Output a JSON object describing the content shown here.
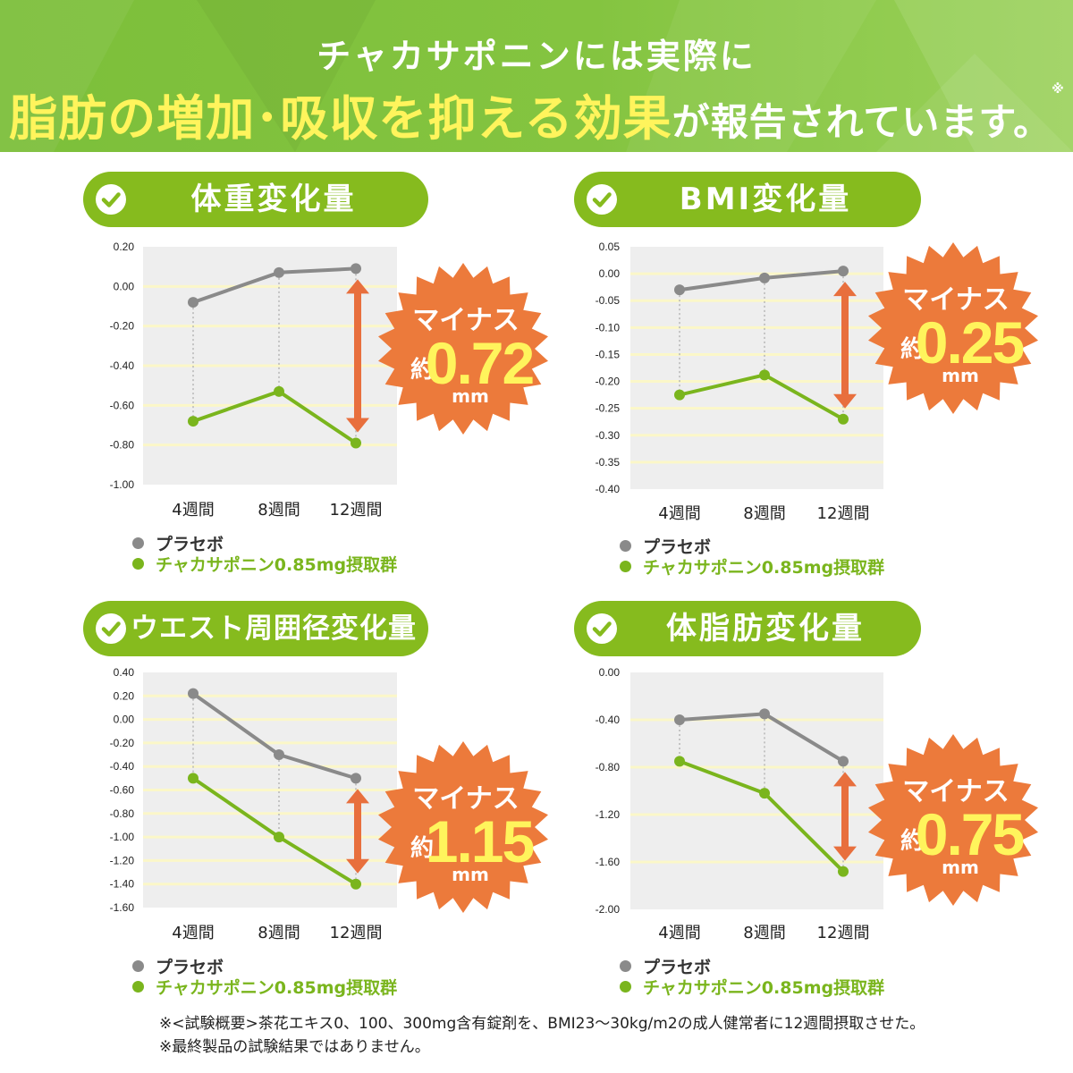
{
  "header": {
    "line1": "チャカサポニンには実際に",
    "line2_highlight": "脂肪の増加･吸収を抑える効果",
    "line2_rest": "が報告されています。",
    "line2_mark": "※"
  },
  "colors": {
    "brand_green": "#86bb1e",
    "series_green": "#7ab51d",
    "series_gray": "#8a8a8a",
    "badge_orange": "#ec7a3b",
    "arrow_orange": "#e86f3d",
    "highlight_yellow": "#fff45c"
  },
  "icons": {
    "check": "check-circle-icon"
  },
  "legend": {
    "placebo": "プラセボ",
    "treatment": "チャカサポニン0.85mg摂取群"
  },
  "panels": [
    {
      "title": "体重変化量",
      "badge": {
        "label": "マイナス",
        "prefix": "約",
        "value": "0.72",
        "unit": "mm"
      },
      "chart_data": {
        "type": "line",
        "title": "体重変化量",
        "categories": [
          "4週間",
          "8週間",
          "12週間"
        ],
        "y_ticks": [
          "0.20",
          "0.00",
          "-0.20",
          "-0.40",
          "-0.60",
          "-0.80",
          "-1.00"
        ],
        "ylim": [
          -1.0,
          0.2
        ],
        "grid": true,
        "legend_position": "bottom-left",
        "series": [
          {
            "name": "プラセボ",
            "values": [
              -0.08,
              0.07,
              0.09
            ]
          },
          {
            "name": "チャカサポニン0.85mg摂取群",
            "values": [
              -0.68,
              -0.53,
              -0.79
            ]
          }
        ]
      }
    },
    {
      "title": "BMI変化量",
      "badge": {
        "label": "マイナス",
        "prefix": "約",
        "value": "0.25",
        "unit": "mm"
      },
      "chart_data": {
        "type": "line",
        "title": "BMI変化量",
        "categories": [
          "4週間",
          "8週間",
          "12週間"
        ],
        "y_ticks": [
          "0.05",
          "0.00",
          "-0.05",
          "-0.10",
          "-0.15",
          "-0.20",
          "-0.25",
          "-0.30",
          "-0.35",
          "-0.40"
        ],
        "ylim": [
          -0.4,
          0.05
        ],
        "grid": true,
        "legend_position": "bottom-left",
        "series": [
          {
            "name": "プラセボ",
            "values": [
              -0.03,
              -0.008,
              0.005
            ]
          },
          {
            "name": "チャカサポニン0.85mg摂取群",
            "values": [
              -0.225,
              -0.188,
              -0.27
            ]
          }
        ]
      }
    },
    {
      "title": "ウエスト周囲径変化量",
      "badge": {
        "label": "マイナス",
        "prefix": "約",
        "value": "1.15",
        "unit": "mm"
      },
      "chart_data": {
        "type": "line",
        "title": "ウエスト周囲径変化量",
        "categories": [
          "4週間",
          "8週間",
          "12週間"
        ],
        "y_ticks": [
          "0.40",
          "0.20",
          "0.00",
          "-0.20",
          "-0.40",
          "-0.60",
          "-0.80",
          "-1.00",
          "-1.20",
          "-1.40",
          "-1.60"
        ],
        "ylim": [
          -1.6,
          0.4
        ],
        "grid": true,
        "legend_position": "bottom-left",
        "series": [
          {
            "name": "プラセボ",
            "values": [
              0.22,
              -0.3,
              -0.5
            ]
          },
          {
            "name": "チャカサポニン0.85mg摂取群",
            "values": [
              -0.5,
              -1.0,
              -1.4
            ]
          }
        ]
      }
    },
    {
      "title": "体脂肪変化量",
      "badge": {
        "label": "マイナス",
        "prefix": "約",
        "value": "0.75",
        "unit": "mm"
      },
      "chart_data": {
        "type": "line",
        "title": "体脂肪変化量",
        "categories": [
          "4週間",
          "8週間",
          "12週間"
        ],
        "y_ticks": [
          "0.00",
          "-0.40",
          "-0.80",
          "-1.20",
          "-1.60",
          "-2.00"
        ],
        "ylim": [
          -2.0,
          0.0
        ],
        "grid": true,
        "legend_position": "bottom-left",
        "series": [
          {
            "name": "プラセボ",
            "values": [
              -0.4,
              -0.35,
              -0.75
            ]
          },
          {
            "name": "チャカサポニン0.85mg摂取群",
            "values": [
              -0.75,
              -1.02,
              -1.68
            ]
          }
        ]
      }
    }
  ],
  "footnotes": [
    "※<試験概要>茶花エキス0、100、300mg含有錠剤を、BMI23〜30kg/m2の成人健常者に12週間摂取させた。",
    "※最終製品の試験結果ではありません。"
  ]
}
